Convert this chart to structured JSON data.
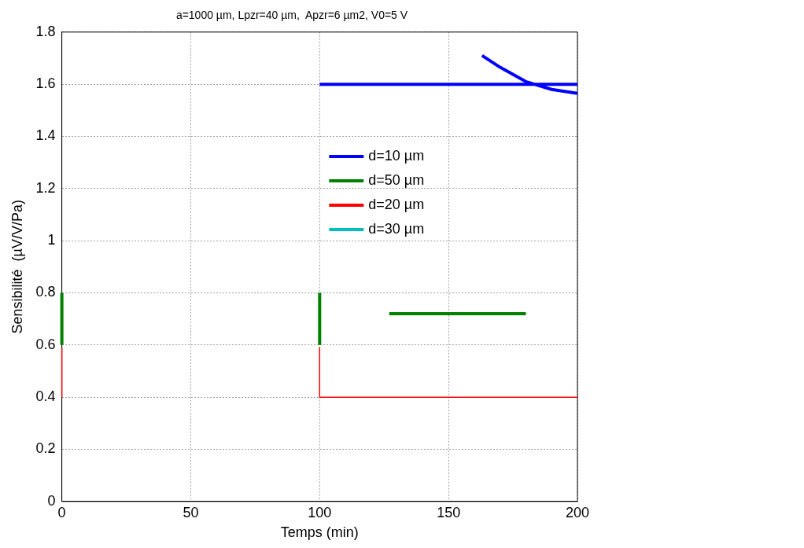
{
  "chart_data": {
    "type": "line",
    "title": "a=1000 µm, Lpzr=40 µm,  Apzr=6 µm2, V0=5 V",
    "xlabel": "Temps (min)",
    "ylabel": "Sensibilité  (µV/V/Pa)",
    "xlim": [
      0,
      200
    ],
    "xticks": [
      0,
      50,
      100,
      150,
      200
    ],
    "ylim": [
      0,
      1.8
    ],
    "yticks": [
      0,
      0.2,
      0.4,
      0.6,
      0.8,
      1,
      1.2,
      1.4,
      1.6,
      1.8
    ],
    "grid": true,
    "legend": "top",
    "marker": "none",
    "line_style": "solid",
    "series": [
      {
        "name": "d=10 µm",
        "color": "#0000ff",
        "x": [
          100,
          200,
          180,
          163,
          170,
          180,
          190,
          200
        ],
        "values": [
          1.6,
          1.6,
          null,
          1.71,
          1.665,
          1.61,
          1.58,
          1.565
        ]
      },
      {
        "name": "d=50 µm",
        "color": "#008000",
        "x": [
          0,
          0,
          50,
          100,
          100,
          120,
          127,
          180
        ],
        "values": [
          0.6,
          0.8,
          null,
          0.6,
          0.8,
          null,
          0.72,
          0.72
        ]
      },
      {
        "name": "d=20 µm",
        "color": "#ff0000",
        "x": [
          0,
          0,
          50,
          100,
          100,
          200
        ],
        "values": [
          0.4,
          0.59,
          null,
          0.59,
          0.4,
          0.4
        ]
      },
      {
        "name": "d=30 µm",
        "color": "#00bfbf"
      }
    ]
  }
}
